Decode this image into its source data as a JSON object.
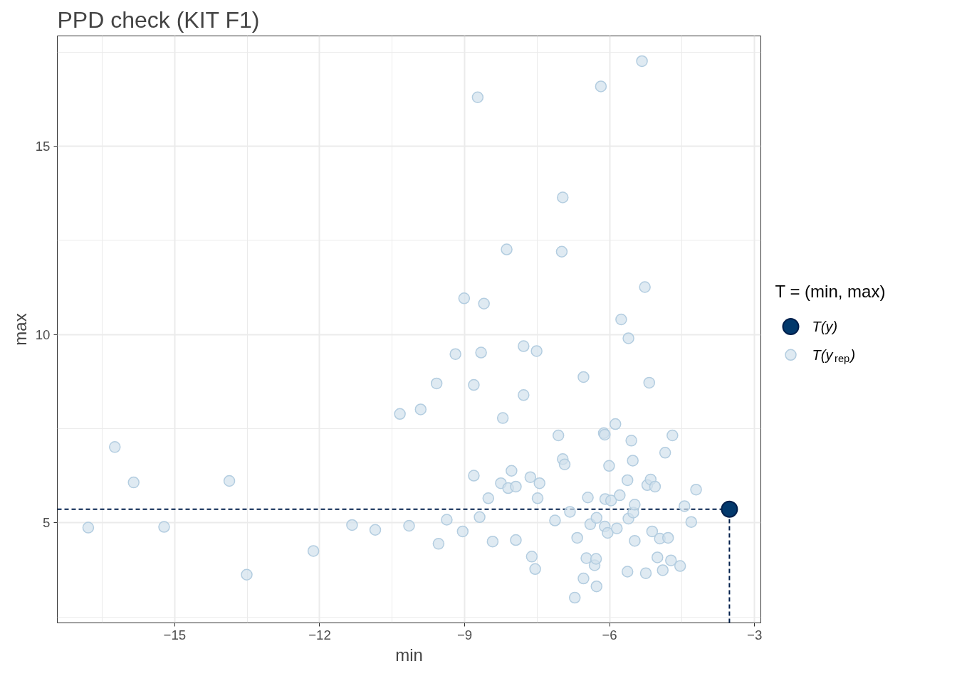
{
  "chart_data": {
    "type": "scatter",
    "title": "PPD check (KIT F1)",
    "xlabel": "min",
    "ylabel": "max",
    "legend_title": "T = (min, max)",
    "xlim": [
      -17.43,
      -2.87
    ],
    "ylim": [
      2.34,
      17.93
    ],
    "xticks": [
      -15,
      -12,
      -9,
      -6,
      -3
    ],
    "yticks": [
      5,
      10,
      15
    ],
    "grid": true,
    "legend": "right",
    "marker": "circle",
    "ref_lines": [
      {
        "axis": "x",
        "value": -3.52,
        "color": "#011f4b",
        "line_style": "dashed"
      },
      {
        "axis": "y",
        "value": 5.36,
        "color": "#011f4b",
        "line_style": "dashed"
      }
    ],
    "series": [
      {
        "name": "T(y)",
        "color": "#03396c",
        "x": [
          -3.52
        ],
        "values": [
          5.36
        ]
      },
      {
        "name": "T(y$_{rep}$)",
        "color": "#d1e1ec",
        "x": [
          -16.79,
          -16.24,
          -15.85,
          -15.22,
          -13.87,
          -13.51,
          -12.13,
          -11.33,
          -10.85,
          -10.34,
          -10.15,
          -9.91,
          -9.58,
          -9.54,
          -9.37,
          -9.19,
          -9.04,
          -9.01,
          -8.81,
          -8.81,
          -8.73,
          -8.69,
          -8.66,
          -8.6,
          -8.51,
          -8.42,
          -8.25,
          -8.21,
          -8.13,
          -8.1,
          -8.03,
          -7.94,
          -7.94,
          -7.78,
          -7.78,
          -7.64,
          -7.61,
          -7.54,
          -7.51,
          -7.49,
          -7.45,
          -7.13,
          -7.06,
          -6.99,
          -6.97,
          -6.97,
          -6.93,
          -6.82,
          -6.72,
          -6.67,
          -6.54,
          -6.54,
          -6.48,
          -6.45,
          -6.4,
          -6.31,
          -6.28,
          -6.27,
          -6.27,
          -6.18,
          -6.12,
          -6.1,
          -6.1,
          -6.09,
          -6.04,
          -6.01,
          -5.97,
          -5.88,
          -5.85,
          -5.79,
          -5.76,
          -5.63,
          -5.63,
          -5.61,
          -5.61,
          -5.55,
          -5.52,
          -5.51,
          -5.48,
          -5.48,
          -5.33,
          -5.27,
          -5.25,
          -5.22,
          -5.18,
          -5.15,
          -5.12,
          -5.06,
          -5.01,
          -4.96,
          -4.9,
          -4.85,
          -4.79,
          -4.73,
          -4.7,
          -4.54,
          -4.45,
          -4.31,
          -4.21
        ],
        "values": [
          4.87,
          7.01,
          6.07,
          4.89,
          6.11,
          3.62,
          4.25,
          4.94,
          4.81,
          7.89,
          4.92,
          8.01,
          8.7,
          4.44,
          5.08,
          9.48,
          4.77,
          10.96,
          8.66,
          6.25,
          16.3,
          5.15,
          9.52,
          10.82,
          5.65,
          4.5,
          6.05,
          7.78,
          12.26,
          5.92,
          6.38,
          5.96,
          4.54,
          8.39,
          9.69,
          6.21,
          4.1,
          3.77,
          9.56,
          5.65,
          6.05,
          5.06,
          7.32,
          12.2,
          13.64,
          6.69,
          6.55,
          5.29,
          3.01,
          4.6,
          8.87,
          3.52,
          4.06,
          5.67,
          4.96,
          3.87,
          4.04,
          3.31,
          5.13,
          16.59,
          7.38,
          7.34,
          4.9,
          5.63,
          4.73,
          6.51,
          5.59,
          7.62,
          4.85,
          5.73,
          10.4,
          3.7,
          6.13,
          9.9,
          5.11,
          7.18,
          6.65,
          5.27,
          5.48,
          4.52,
          17.26,
          11.26,
          3.66,
          6.0,
          8.72,
          6.15,
          4.77,
          5.96,
          4.08,
          4.58,
          3.74,
          6.86,
          4.6,
          4.0,
          7.32,
          3.85,
          5.44,
          5.02,
          5.88
        ]
      }
    ]
  }
}
